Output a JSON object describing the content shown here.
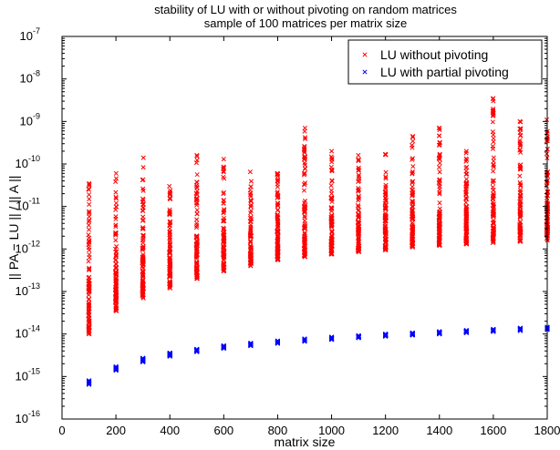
{
  "chart_data": {
    "type": "scatter",
    "title": "stability of LU with or without pivoting on random matrices",
    "subtitle": "sample of 100 matrices per matrix size",
    "xlabel": "matrix size",
    "ylabel": "|| PA − LU || / || A ||",
    "xlim": [
      0,
      1800
    ],
    "ylim": [
      1e-16,
      1e-07
    ],
    "y_scale": "log",
    "x_ticks": [
      0,
      200,
      400,
      600,
      800,
      1000,
      1200,
      1400,
      1600,
      1800
    ],
    "y_tick_exponents": [
      -16,
      -15,
      -14,
      -13,
      -12,
      -11,
      -10,
      -9,
      -8,
      -7
    ],
    "grid": false,
    "legend_position": "top-right",
    "marker": "x",
    "series": [
      {
        "name": "LU without pivoting",
        "color": "#ff0000",
        "x": [
          100,
          200,
          300,
          400,
          500,
          600,
          700,
          800,
          900,
          1000,
          1100,
          1200,
          1300,
          1400,
          1500,
          1600,
          1700,
          1800
        ],
        "y_min": [
          1e-14,
          3.5e-14,
          7e-14,
          1.2e-13,
          2e-13,
          3e-13,
          4e-13,
          5.5e-13,
          6.5e-13,
          7.5e-13,
          8.5e-13,
          9.5e-13,
          1.1e-12,
          1.2e-12,
          1.3e-12,
          1.4e-12,
          1.5e-12,
          1.6e-12
        ],
        "y_max": [
          3.5e-11,
          6e-11,
          1.4e-10,
          3e-11,
          1.6e-10,
          1.3e-10,
          6.5e-11,
          6e-11,
          7e-10,
          2e-10,
          1.6e-10,
          1.7e-10,
          4.5e-10,
          7e-10,
          2e-10,
          3.5e-09,
          1e-09,
          1.1e-09
        ],
        "y_median": [
          1e-13,
          2.5e-13,
          5e-13,
          8e-13,
          1.2e-12,
          1.5e-12,
          2e-12,
          2.5e-12,
          3e-12,
          3.5e-12,
          4e-12,
          4.5e-12,
          5e-12,
          5.5e-12,
          6e-12,
          6.5e-12,
          7e-12,
          7.5e-12
        ],
        "points_per_size": 100
      },
      {
        "name": "LU with partial pivoting",
        "color": "#0000ff",
        "x": [
          100,
          200,
          300,
          400,
          500,
          600,
          700,
          800,
          900,
          1000,
          1100,
          1200,
          1300,
          1400,
          1500,
          1600,
          1700,
          1800
        ],
        "y_min": [
          6.5e-16,
          1.4e-15,
          2.2e-15,
          3e-15,
          3.8e-15,
          4.6e-15,
          5.3e-15,
          6e-15,
          6.7e-15,
          7.4e-15,
          8.1e-15,
          8.8e-15,
          9.4e-15,
          1e-14,
          1.07e-14,
          1.14e-14,
          1.2e-14,
          1.27e-14
        ],
        "y_max": [
          8e-16,
          1.7e-15,
          2.7e-15,
          3.6e-15,
          4.4e-15,
          5.3e-15,
          6.1e-15,
          6.9e-15,
          7.7e-15,
          8.5e-15,
          9.2e-15,
          1e-14,
          1.07e-14,
          1.15e-14,
          1.22e-14,
          1.3e-14,
          1.38e-14,
          1.45e-14
        ],
        "points_per_size": 100
      }
    ]
  }
}
